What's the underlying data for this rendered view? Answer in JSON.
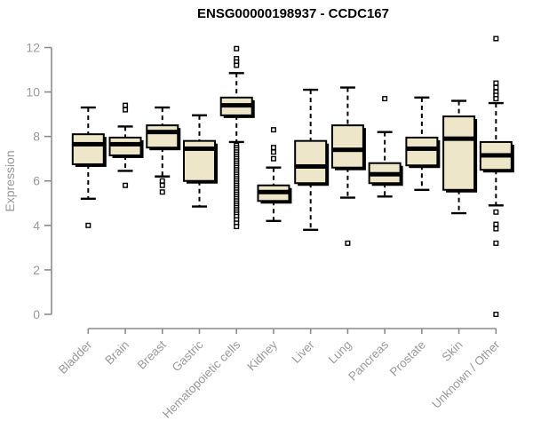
{
  "chart_data": {
    "type": "boxplot",
    "title": "ENSG00000198937 - CCDC167",
    "ylabel": "Expression",
    "xlabel": "",
    "ylim": [
      0,
      12
    ],
    "yticks": [
      0,
      2,
      4,
      6,
      8,
      10,
      12
    ],
    "grid": false,
    "legend": "none",
    "categories": [
      "Bladder",
      "Brain",
      "Breast",
      "Gastric",
      "Hematopoietic cells",
      "Kidney",
      "Liver",
      "Lung",
      "Pancreas",
      "Prostate",
      "Skin",
      "Unknown / Other"
    ],
    "series": [
      {
        "category": "Bladder",
        "whisker_low": 5.2,
        "q1": 6.75,
        "median": 7.65,
        "q3": 8.1,
        "whisker_high": 9.3,
        "outliers": [
          4.0
        ]
      },
      {
        "category": "Brain",
        "whisker_low": 6.45,
        "q1": 7.15,
        "median": 7.65,
        "q3": 7.95,
        "whisker_high": 8.45,
        "outliers": [
          9.4,
          9.2,
          5.8
        ]
      },
      {
        "category": "Breast",
        "whisker_low": 6.2,
        "q1": 7.5,
        "median": 8.2,
        "q3": 8.5,
        "whisker_high": 9.3,
        "outliers": [
          6.0,
          5.8,
          5.5
        ]
      },
      {
        "category": "Gastric",
        "whisker_low": 4.85,
        "q1": 6.0,
        "median": 7.45,
        "q3": 7.8,
        "whisker_high": 8.95,
        "outliers": []
      },
      {
        "category": "Hematopoietic cells",
        "whisker_low": 7.75,
        "q1": 8.95,
        "median": 9.4,
        "q3": 9.75,
        "whisker_high": 10.85,
        "outliers": [
          11.95,
          11.5,
          11.35,
          11.2,
          7.6,
          7.5,
          7.4,
          7.3,
          7.2,
          7.1,
          7.0,
          6.9,
          6.8,
          6.7,
          6.6,
          6.5,
          6.4,
          6.3,
          6.2,
          6.1,
          6.0,
          5.9,
          5.8,
          5.7,
          5.6,
          5.5,
          5.4,
          5.3,
          5.2,
          5.1,
          5.0,
          4.9,
          4.8,
          4.7,
          4.6,
          4.5,
          4.4,
          4.25,
          4.1,
          3.95
        ]
      },
      {
        "category": "Kidney",
        "whisker_low": 4.2,
        "q1": 5.1,
        "median": 5.5,
        "q3": 5.8,
        "whisker_high": 6.6,
        "outliers": [
          8.3,
          7.5,
          7.3,
          7.0
        ]
      },
      {
        "category": "Liver",
        "whisker_low": 3.8,
        "q1": 5.9,
        "median": 6.65,
        "q3": 7.8,
        "whisker_high": 10.1,
        "outliers": []
      },
      {
        "category": "Lung",
        "whisker_low": 5.25,
        "q1": 6.6,
        "median": 7.4,
        "q3": 8.5,
        "whisker_high": 10.2,
        "outliers": [
          3.2
        ]
      },
      {
        "category": "Pancreas",
        "whisker_low": 5.3,
        "q1": 5.9,
        "median": 6.3,
        "q3": 6.8,
        "whisker_high": 8.2,
        "outliers": [
          9.7
        ]
      },
      {
        "category": "Prostate",
        "whisker_low": 5.6,
        "q1": 6.7,
        "median": 7.45,
        "q3": 7.95,
        "whisker_high": 9.75,
        "outliers": []
      },
      {
        "category": "Skin",
        "whisker_low": 4.55,
        "q1": 5.6,
        "median": 7.9,
        "q3": 8.9,
        "whisker_high": 9.6,
        "outliers": []
      },
      {
        "category": "Unknown / Other",
        "whisker_low": 4.9,
        "q1": 6.5,
        "median": 7.15,
        "q3": 7.75,
        "whisker_high": 9.5,
        "outliers": [
          12.4,
          10.4,
          10.2,
          10.0,
          9.85,
          9.7,
          4.6,
          4.05,
          3.85,
          3.2,
          0.0
        ]
      }
    ],
    "colors": {
      "box_fill": "#ede6c8",
      "box_border": "#000000",
      "median": "#000000",
      "whisker": "#000000",
      "outlier_fill": "#ffffff",
      "axis": "#8c8c8c",
      "tick_label": "#9a9a9a",
      "title": "#000000",
      "background": "#ffffff"
    }
  }
}
